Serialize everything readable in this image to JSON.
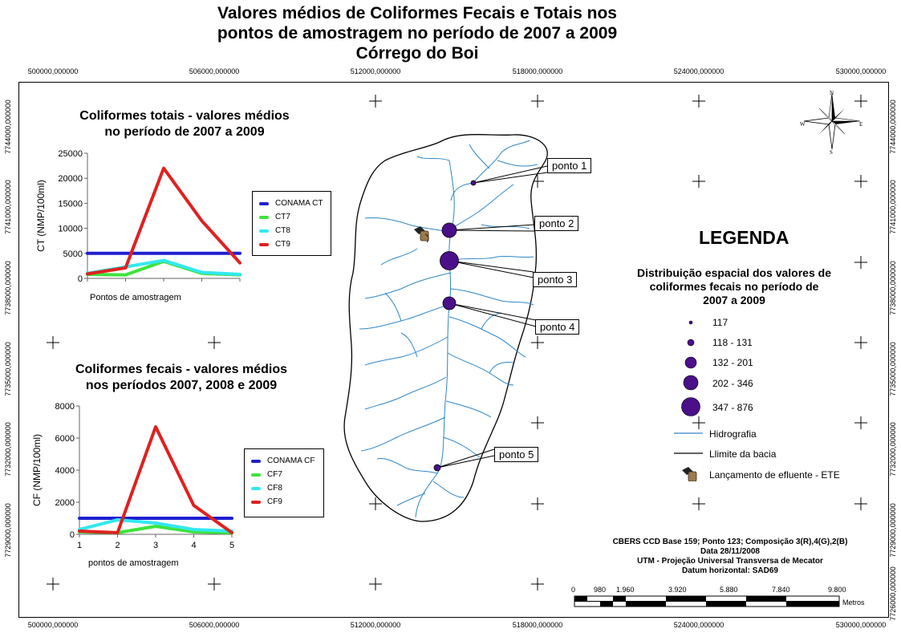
{
  "title": {
    "line1": "Valores médios de Coliformes Fecais e Totais nos",
    "line2": "pontos de amostragem no período de 2007 a 2009",
    "line3": "Córrego do Boi"
  },
  "grid": {
    "x_labels": [
      "500000,000000",
      "506000,000000",
      "512000,000000",
      "518000,000000",
      "524000,000000",
      "530000,000000"
    ],
    "y_labels": [
      "7744000,000000",
      "7741000,000000",
      "7738000,000000",
      "7735000,000000",
      "7732000,000000",
      "7729000,000000",
      "7726000,000000"
    ]
  },
  "chart_data": [
    {
      "type": "line",
      "title": "Coliformes totais - valores médios no período de 2007 a 2009",
      "title_line1": "Coliformes totais - valores médios",
      "title_line2": "no período de 2007 a 2009",
      "xlabel": "Pontos de amostragem",
      "ylabel": "CT (NMP/100ml)",
      "ylim": [
        0,
        25000
      ],
      "y_ticks": [
        "0",
        "5000",
        "10000",
        "15000",
        "20000",
        "25000"
      ],
      "x": [
        1,
        2,
        3,
        4,
        5
      ],
      "series": [
        {
          "name": "CONAMA CT",
          "color": "#1f1fd0",
          "values": [
            5000,
            5000,
            5000,
            5000,
            5000
          ]
        },
        {
          "name": "CT7",
          "color": "#3ce43c",
          "values": [
            800,
            700,
            3400,
            1000,
            700
          ]
        },
        {
          "name": "CT8",
          "color": "#33e8f0",
          "values": [
            1000,
            2300,
            3600,
            1200,
            800
          ]
        },
        {
          "name": "CT9",
          "color": "#e02020",
          "values": [
            900,
            2100,
            22000,
            11500,
            3100
          ]
        }
      ]
    },
    {
      "type": "line",
      "title": "Coliformes fecais - valores médios nos períodos 2007, 2008 e 2009",
      "title_line1": "Coliformes fecais - valores médios",
      "title_line2": "nos períodos 2007, 2008 e 2009",
      "xlabel": "pontos de amostragem",
      "ylabel": "CF (NMP/100ml)",
      "ylim": [
        0,
        8000
      ],
      "y_ticks": [
        "0",
        "2000",
        "4000",
        "6000",
        "8000"
      ],
      "x_ticks": [
        "1",
        "2",
        "3",
        "4",
        "5"
      ],
      "x": [
        1,
        2,
        3,
        4,
        5
      ],
      "series": [
        {
          "name": "CONAMA CF",
          "color": "#1f1fd0",
          "values": [
            1000,
            1000,
            1000,
            1000,
            1000
          ]
        },
        {
          "name": "CF7",
          "color": "#3ce43c",
          "values": [
            150,
            100,
            500,
            150,
            100
          ]
        },
        {
          "name": "CF8",
          "color": "#33e8f0",
          "values": [
            300,
            900,
            700,
            300,
            200
          ]
        },
        {
          "name": "CF9",
          "color": "#e02020",
          "values": [
            200,
            100,
            6700,
            1800,
            100
          ]
        }
      ]
    }
  ],
  "points": [
    {
      "label": "ponto 1"
    },
    {
      "label": "ponto 2"
    },
    {
      "label": "ponto 3"
    },
    {
      "label": "ponto 4"
    },
    {
      "label": "ponto 5"
    }
  ],
  "legend": {
    "title": "LEGENDA",
    "subtitle_line1": "Distribuição espacial dos valores de",
    "subtitle_line2": "coliformes  fecais no período de",
    "subtitle_line3": "2007 a 2009",
    "classes": [
      "117",
      "118 - 131",
      "132 - 201",
      "202 - 346",
      "347 - 876"
    ],
    "hidrografia": "Hidrografia",
    "limite": "Llimite da bacia",
    "efluente": "Lançamento de efluente - ETE",
    "point_color": "#4b0f8a",
    "river_color": "#2e86c8"
  },
  "metadata": {
    "line1": "CBERS CCD Base 159; Ponto 123; Composição 3(R),4(G),2(B)",
    "line2": "Data 28/11/2008",
    "line3": "UTM - Projeção Universal Transversa de Mecator",
    "line4": "Datum horizontal: SAD69"
  },
  "scale": {
    "labels": [
      "0",
      "980",
      "1.960",
      "3.920",
      "5.880",
      "7.840",
      "9.800"
    ],
    "unit": "Metros"
  },
  "north_arrow": {
    "n": "N",
    "s": "S",
    "e": "E",
    "w": "W"
  }
}
